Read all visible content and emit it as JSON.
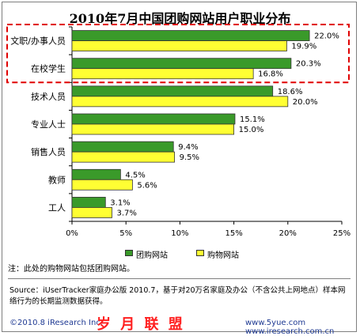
{
  "chart_data": {
    "type": "bar",
    "title": "2010年7月中国团购网站用户职业分布",
    "categories": [
      "文职/办事人员",
      "在校学生",
      "技术人员",
      "专业人士",
      "销售人员",
      "教师",
      "工人"
    ],
    "series": [
      {
        "name": "团购网站",
        "values": [
          22.0,
          20.3,
          18.6,
          15.1,
          9.4,
          4.5,
          3.1
        ],
        "labels": [
          "22.0%",
          "20.3%",
          "18.6%",
          "15.1%",
          "9.4%",
          "4.5%",
          "3.1%"
        ],
        "color": "#3a9a2a"
      },
      {
        "name": "购物网站",
        "values": [
          19.9,
          16.8,
          20.0,
          15.0,
          9.5,
          5.6,
          3.7
        ],
        "labels": [
          "19.9%",
          "16.8%",
          "20.0%",
          "15.0%",
          "9.5%",
          "5.6%",
          "3.7%"
        ],
        "color": "#ffff33"
      }
    ],
    "xlim": [
      0,
      25
    ],
    "xticks": [
      "0%",
      "5%",
      "10%",
      "15%",
      "20%",
      "25%"
    ],
    "orientation": "horizontal",
    "legend": "bottom",
    "highlight": "dashed red box around the first two categories",
    "highlight_color": "#e00000"
  },
  "note": "注：此处的购物网站包括团购网站。",
  "source": "Source：iUserTracker家庭办公版 2010.7，基于对20万名家庭及办公（不含公共上网地点）样本网络行为的长期监测数据获得。",
  "footer": {
    "copyright": "©2010.8 iResearch Inc.",
    "watermark": "岁 月 联 盟",
    "url": "www.5yue.com www.iresearch.com.cn"
  }
}
